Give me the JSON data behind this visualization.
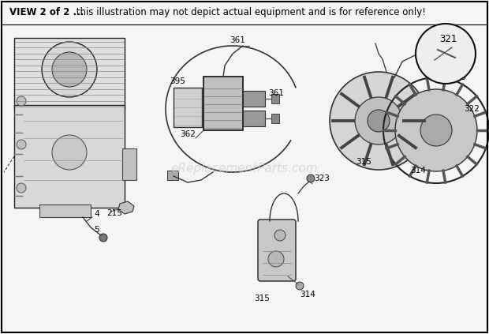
{
  "fig_width": 6.2,
  "fig_height": 4.23,
  "dpi": 100,
  "bg_color": "#f5f5f5",
  "title_bold": "VIEW 2 of 2 ...",
  "title_rest": " this illustration may not depict actual equipment and is for reference only!",
  "watermark": "eReplacementParts.com",
  "label_fs": 7.5,
  "title_fs": 8.5
}
